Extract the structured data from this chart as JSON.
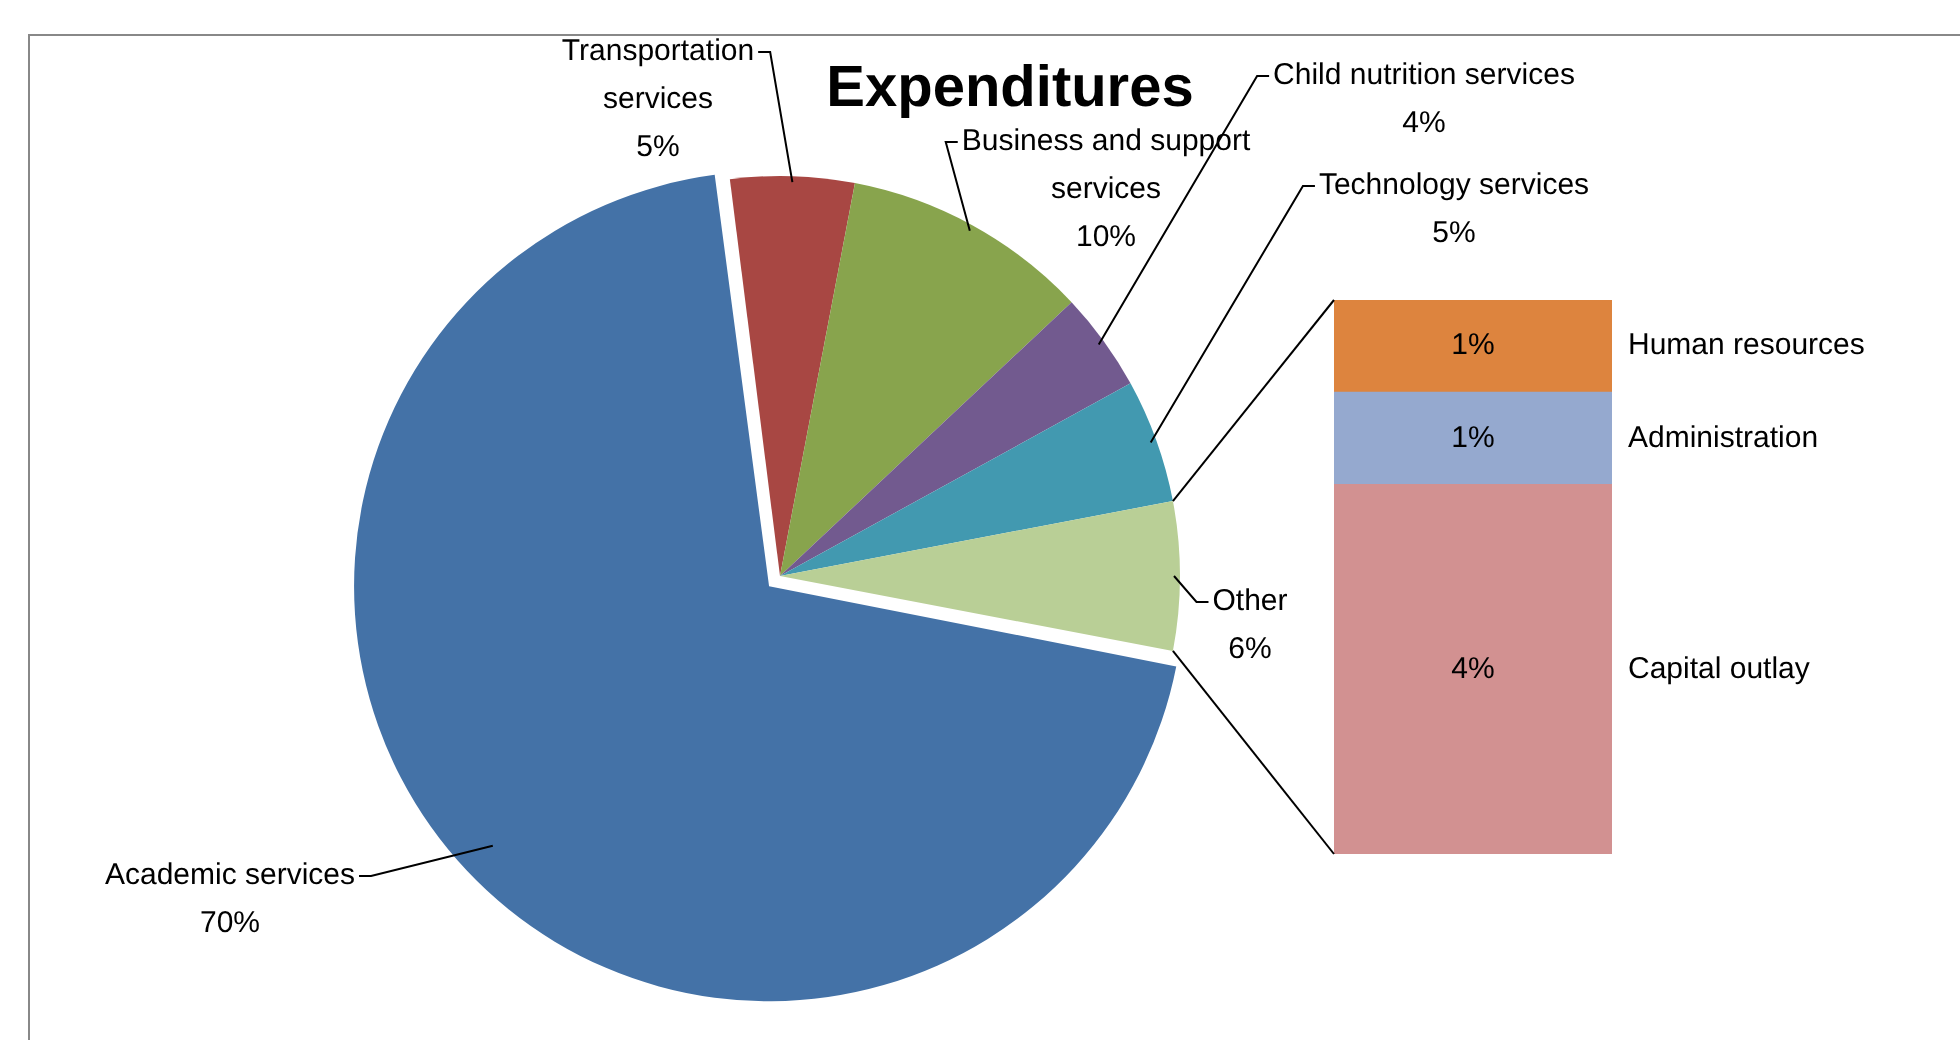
{
  "chart_data": [
    {
      "type": "pie",
      "title": "Expenditures",
      "categories": [
        "Transportation services",
        "Business and support services",
        "Child nutrition services",
        "Technology services",
        "Other",
        "Academic services"
      ],
      "values": [
        5,
        10,
        4,
        5,
        6,
        70
      ],
      "colors": [
        "#a84743",
        "#88a44d",
        "#725a8f",
        "#4299b0",
        "#b9cf96",
        "#4472a7"
      ],
      "value_labels": [
        "5%",
        "10%",
        "4%",
        "5%",
        "6%",
        "70%"
      ]
    },
    {
      "type": "bar",
      "stacked": true,
      "tick_labels": false,
      "categories": [
        null
      ],
      "series": [
        {
          "name": "Capital outlay",
          "color": "#d29191",
          "values": [
            4
          ],
          "value_labels": [
            "4%"
          ]
        },
        {
          "name": "Administration",
          "color": "#95a9cf",
          "values": [
            1
          ],
          "value_labels": [
            "1%"
          ]
        },
        {
          "name": "Human resources",
          "color": "#dd843e",
          "values": [
            1
          ],
          "value_labels": [
            "1%"
          ]
        }
      ]
    }
  ]
}
